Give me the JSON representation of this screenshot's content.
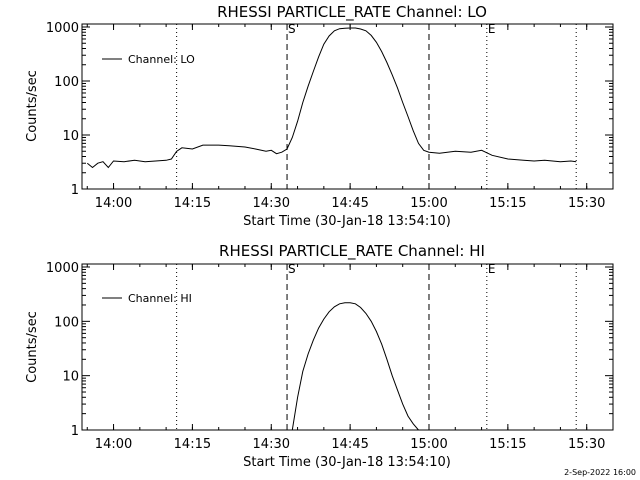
{
  "footer": {
    "stamp": "2-Sep-2022 16:00"
  },
  "chart_data": [
    {
      "type": "line",
      "title": "RHESSI PARTICLE_RATE Channel: LO",
      "xlabel": "Start Time (30-Jan-18 13:54:10)",
      "ylabel": "Counts/sec",
      "yscale": "log",
      "ylim": [
        1,
        1000
      ],
      "xlim": [
        "13:54",
        "15:35"
      ],
      "xticks": [
        "14:00",
        "14:15",
        "14:30",
        "14:45",
        "15:00",
        "15:15",
        "15:30"
      ],
      "yticks": [
        "1",
        "10",
        "100",
        "1000"
      ],
      "legend": "top-left",
      "grid": false,
      "markers": {
        "start_label": "S",
        "end_label": "E"
      },
      "series": [
        {
          "name": "Channel: LO",
          "x": [
            "13:55",
            "13:56",
            "13:57",
            "13:58",
            "13:59",
            "14:00",
            "14:02",
            "14:04",
            "14:06",
            "14:08",
            "14:10",
            "14:11",
            "14:12",
            "14:13",
            "14:15",
            "14:17",
            "14:20",
            "14:22",
            "14:25",
            "14:27",
            "14:29",
            "14:30",
            "14:31",
            "14:32",
            "14:33",
            "14:34",
            "14:35",
            "14:36",
            "14:37",
            "14:38",
            "14:39",
            "14:40",
            "14:41",
            "14:42",
            "14:43",
            "14:44",
            "14:45",
            "14:46",
            "14:47",
            "14:48",
            "14:49",
            "14:50",
            "14:51",
            "14:52",
            "14:53",
            "14:54",
            "14:55",
            "14:56",
            "14:57",
            "14:58",
            "14:59",
            "15:00",
            "15:02",
            "15:05",
            "15:08",
            "15:10",
            "15:12",
            "15:15",
            "15:18",
            "15:20",
            "15:22",
            "15:25",
            "15:27",
            "15:28"
          ],
          "y": [
            3,
            2.5,
            3,
            3.2,
            2.5,
            3.3,
            3.2,
            3.4,
            3.2,
            3.3,
            3.4,
            3.6,
            5,
            5.8,
            5.5,
            6.5,
            6.5,
            6.3,
            6,
            5.5,
            5,
            5.2,
            4.5,
            4.8,
            5.5,
            9,
            18,
            40,
            80,
            150,
            280,
            480,
            680,
            850,
            930,
            950,
            960,
            960,
            920,
            850,
            700,
            520,
            350,
            220,
            130,
            75,
            40,
            22,
            12,
            7,
            5.2,
            4.8,
            4.6,
            5,
            4.8,
            5.2,
            4.2,
            3.6,
            3.4,
            3.3,
            3.4,
            3.2,
            3.3,
            3.2
          ]
        }
      ]
    },
    {
      "type": "line",
      "title": "RHESSI PARTICLE_RATE Channel: HI",
      "xlabel": "Start Time (30-Jan-18 13:54:10)",
      "ylabel": "Counts/sec",
      "yscale": "log",
      "ylim": [
        1,
        1000
      ],
      "xlim": [
        "13:54",
        "15:35"
      ],
      "xticks": [
        "14:00",
        "14:15",
        "14:30",
        "14:45",
        "15:00",
        "15:15",
        "15:30"
      ],
      "yticks": [
        "1",
        "10",
        "100",
        "1000"
      ],
      "legend": "top-left",
      "grid": false,
      "markers": {
        "start_label": "S",
        "end_label": "E"
      },
      "series": [
        {
          "name": "Channel: HI",
          "x": [
            "14:34",
            "14:35",
            "14:36",
            "14:37",
            "14:38",
            "14:39",
            "14:40",
            "14:41",
            "14:42",
            "14:43",
            "14:44",
            "14:45",
            "14:46",
            "14:47",
            "14:48",
            "14:49",
            "14:50",
            "14:51",
            "14:52",
            "14:53",
            "14:54",
            "14:55",
            "14:56",
            "14:57",
            "14:58"
          ],
          "y": [
            1,
            4,
            12,
            25,
            45,
            75,
            110,
            150,
            185,
            210,
            220,
            220,
            210,
            180,
            140,
            100,
            65,
            38,
            20,
            10,
            5.5,
            3,
            1.8,
            1.3,
            1
          ]
        }
      ]
    }
  ]
}
